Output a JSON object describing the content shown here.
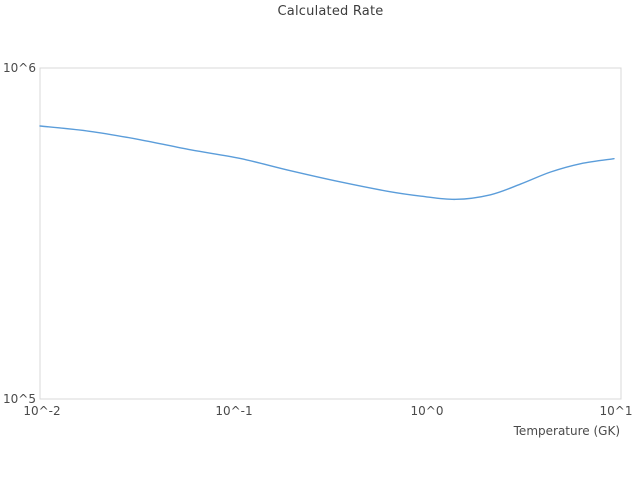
{
  "chart": {
    "title": "Calculated Rate"
  },
  "colors": {
    "line": "#5b9dda",
    "plot_border": "#d8d8d8",
    "background": "#ffffff",
    "text": "#4a4a4a"
  },
  "chart_data": {
    "type": "line",
    "title": "Calculated Rate",
    "xlabel": "Temperature (GK)",
    "ylabel": "",
    "xscale": "log",
    "yscale": "log",
    "xlim": [
      0.01,
      10
    ],
    "ylim": [
      100000,
      1000000
    ],
    "x_ticks": [
      "10^-2",
      "10^-1",
      "10^0",
      "10^1"
    ],
    "y_ticks": [
      "10^5",
      "10^6"
    ],
    "grid": false,
    "legend": false,
    "series": [
      {
        "name": "Calculated Rate",
        "x": [
          0.01,
          0.018,
          0.033,
          0.06,
          0.108,
          0.195,
          0.354,
          0.641,
          0.93,
          1.4,
          2.12,
          3.03,
          4.33,
          6.2,
          9.2
        ],
        "y": [
          668000,
          644000,
          607000,
          566000,
          533000,
          490000,
          453000,
          423000,
          410000,
          401000,
          414000,
          446000,
          485000,
          514000,
          532000
        ]
      }
    ]
  }
}
